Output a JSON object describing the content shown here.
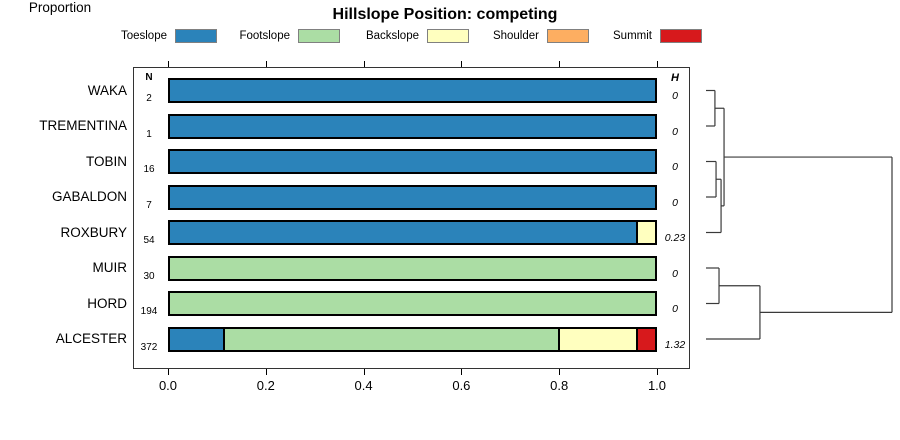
{
  "title": "Hillslope Position: competing",
  "legend": {
    "items": [
      {
        "label": "Toeslope",
        "color": "#2B83BA"
      },
      {
        "label": "Footslope",
        "color": "#ABDDA4"
      },
      {
        "label": "Backslope",
        "color": "#FFFFBF"
      },
      {
        "label": "Shoulder",
        "color": "#FDAE61"
      },
      {
        "label": "Summit",
        "color": "#D7191C"
      }
    ]
  },
  "chart_data": {
    "type": "bar",
    "variant": "horizontal-stacked-proportion",
    "title": "Hillslope Position: competing",
    "xlabel": "Proportion",
    "xlim": [
      0.0,
      1.0
    ],
    "x_ticks": [
      "0.0",
      "0.2",
      "0.4",
      "0.6",
      "0.8",
      "1.0"
    ],
    "n_header": "N",
    "h_header": "H",
    "series_names": [
      "Toeslope",
      "Footslope",
      "Backslope",
      "Shoulder",
      "Summit"
    ],
    "rows": [
      {
        "category": "WAKA",
        "n": "2",
        "h": "0",
        "segments": [
          {
            "name": "Toeslope",
            "value": 1.0
          }
        ]
      },
      {
        "category": "TREMENTINA",
        "n": "1",
        "h": "0",
        "segments": [
          {
            "name": "Toeslope",
            "value": 1.0
          }
        ]
      },
      {
        "category": "TOBIN",
        "n": "16",
        "h": "0",
        "segments": [
          {
            "name": "Toeslope",
            "value": 1.0
          }
        ]
      },
      {
        "category": "GABALDON",
        "n": "7",
        "h": "0",
        "segments": [
          {
            "name": "Toeslope",
            "value": 1.0
          }
        ]
      },
      {
        "category": "ROXBURY",
        "n": "54",
        "h": "0.23",
        "segments": [
          {
            "name": "Toeslope",
            "value": 0.96
          },
          {
            "name": "Backslope",
            "value": 0.04
          }
        ]
      },
      {
        "category": "MUIR",
        "n": "30",
        "h": "0",
        "segments": [
          {
            "name": "Footslope",
            "value": 1.0
          }
        ]
      },
      {
        "category": "HORD",
        "n": "194",
        "h": "0",
        "segments": [
          {
            "name": "Footslope",
            "value": 1.0
          }
        ]
      },
      {
        "category": "ALCESTER",
        "n": "372",
        "h": "1.32",
        "segments": [
          {
            "name": "Toeslope",
            "value": 0.11
          },
          {
            "name": "Footslope",
            "value": 0.69
          },
          {
            "name": "Backslope",
            "value": 0.16
          },
          {
            "name": "Summit",
            "value": 0.04
          }
        ]
      }
    ],
    "dendrogram": {
      "leaf_order": [
        "WAKA",
        "TREMENTINA",
        "TOBIN",
        "GABALDON",
        "ROXBURY",
        "MUIR",
        "HORD",
        "ALCESTER"
      ],
      "tree": {
        "h": 1.0,
        "children": [
          {
            "h": 0.097,
            "children": [
              {
                "h": 0.048,
                "children": [
                  {
                    "leaf": "WAKA"
                  },
                  {
                    "leaf": "TREMENTINA"
                  }
                ]
              },
              {
                "h": 0.081,
                "children": [
                  {
                    "h": 0.054,
                    "children": [
                      {
                        "leaf": "TOBIN"
                      },
                      {
                        "leaf": "GABALDON"
                      }
                    ]
                  },
                  {
                    "leaf": "ROXBURY"
                  }
                ]
              }
            ]
          },
          {
            "h": 0.29,
            "children": [
              {
                "h": 0.07,
                "children": [
                  {
                    "leaf": "MUIR"
                  },
                  {
                    "leaf": "HORD"
                  }
                ]
              },
              {
                "leaf": "ALCESTER"
              }
            ]
          }
        ]
      }
    }
  }
}
